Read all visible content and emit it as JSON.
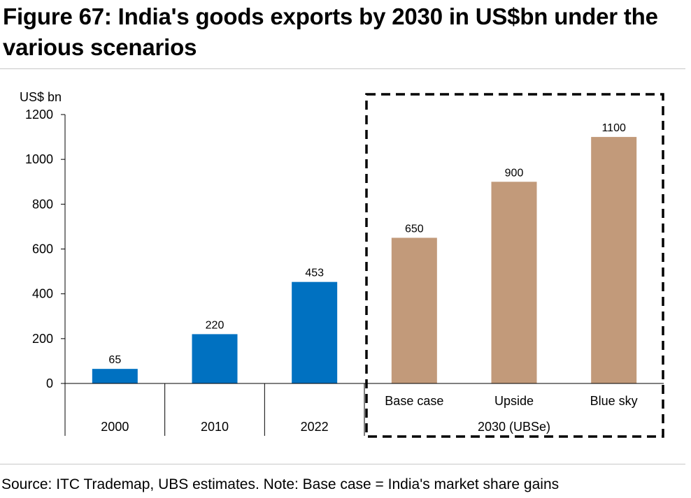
{
  "figure": {
    "title": "Figure 67: India's goods exports by 2030 in US$bn under the various scenarios",
    "source": "Source: ITC Trademap, UBS estimates. Note: Base case = India's market share gains"
  },
  "chart_data": {
    "type": "bar",
    "title": "Figure 67: India's goods exports by 2030 in US$bn under the various scenarios",
    "ylabel": "US$ bn",
    "ylim": [
      0,
      1200
    ],
    "yticks": [
      0,
      200,
      400,
      600,
      800,
      1000,
      1200
    ],
    "grid": false,
    "legend": "none",
    "categories": [
      "2000",
      "2010",
      "2022",
      "Base case",
      "Upside",
      "Blue sky"
    ],
    "values": [
      65,
      220,
      453,
      650,
      900,
      1100
    ],
    "data_labels": [
      "65",
      "220",
      "453",
      "650",
      "900",
      "1100"
    ],
    "group_label": "2030 (UBSe)",
    "highlighted_group": [
      "Base case",
      "Upside",
      "Blue sky"
    ],
    "colors": {
      "historical": "#0071c1",
      "scenario": "#c29a7a"
    }
  }
}
